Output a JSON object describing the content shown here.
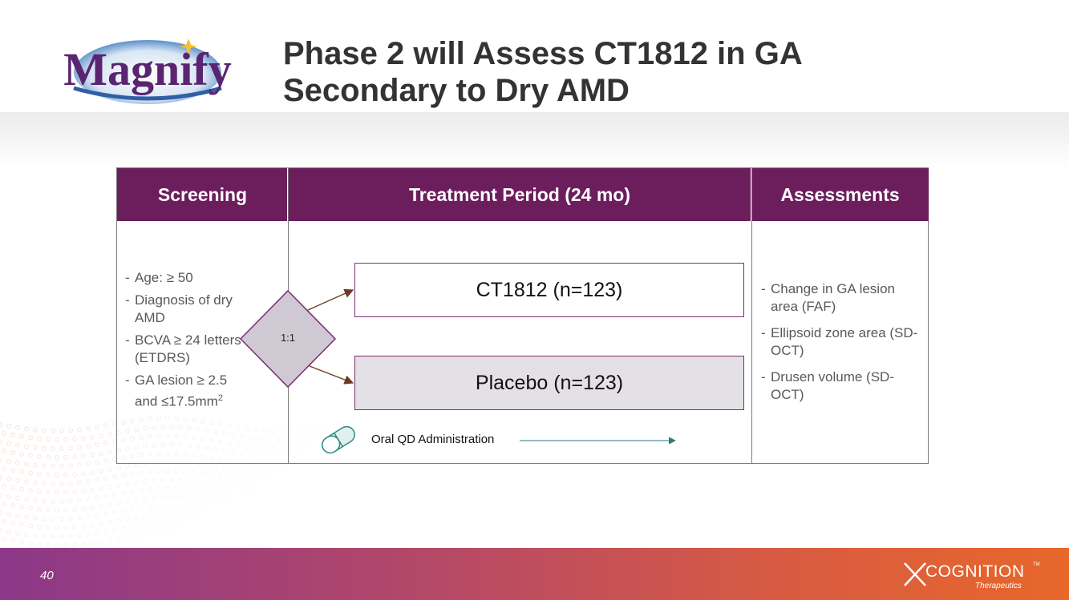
{
  "slide": {
    "title_lines": [
      "Phase 2 will Assess CT1812 in GA",
      "Secondary to Dry AMD"
    ],
    "logo_text": "Magnify",
    "page_number": "40",
    "brand": {
      "name": "COGNITION",
      "tagline": "Therapeutics",
      "tm": "TM"
    }
  },
  "colors": {
    "header": "#6c1d5c",
    "arrow": "#6b3a1f",
    "footer_start": "#8c3888",
    "footer_end": "#e8672a",
    "placebo_fill": "#e3e0e6"
  },
  "table": {
    "headers": [
      "Screening",
      "Treatment Period (24 mo)",
      "Assessments"
    ],
    "screening_criteria": [
      "Age: ≥ 50",
      "Diagnosis of dry AMD",
      "BCVA ≥ 24 letters (ETDRS)",
      "GA lesion ≥ 2.5 and ≤17.5mm"
    ],
    "screening_superscript": "2",
    "randomization": "1:1",
    "arms": [
      "CT1812 (n=123)",
      "Placebo (n=123)"
    ],
    "administration": {
      "label": "Oral QD Administration",
      "icon": "pill-capsule-icon"
    },
    "assessments": [
      "Change in GA lesion area (FAF)",
      "Ellipsoid zone area (SD-OCT)",
      "Drusen volume (SD-OCT)"
    ]
  }
}
